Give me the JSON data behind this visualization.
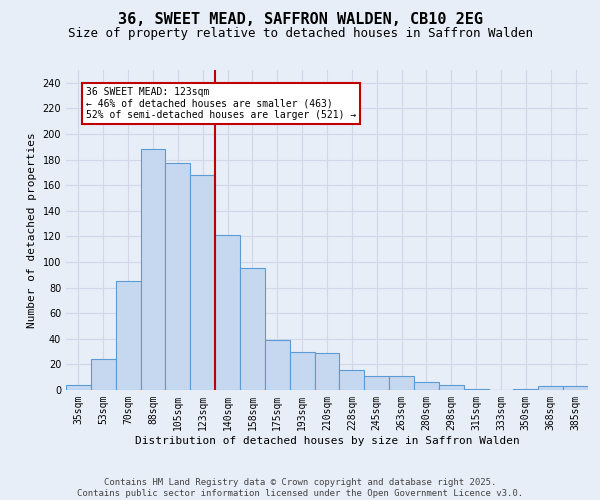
{
  "title_line1": "36, SWEET MEAD, SAFFRON WALDEN, CB10 2EG",
  "title_line2": "Size of property relative to detached houses in Saffron Walden",
  "xlabel": "Distribution of detached houses by size in Saffron Walden",
  "ylabel": "Number of detached properties",
  "categories": [
    "35sqm",
    "53sqm",
    "70sqm",
    "88sqm",
    "105sqm",
    "123sqm",
    "140sqm",
    "158sqm",
    "175sqm",
    "193sqm",
    "210sqm",
    "228sqm",
    "245sqm",
    "263sqm",
    "280sqm",
    "298sqm",
    "315sqm",
    "333sqm",
    "350sqm",
    "368sqm",
    "385sqm"
  ],
  "values": [
    4,
    24,
    85,
    188,
    177,
    168,
    121,
    95,
    39,
    30,
    29,
    16,
    11,
    11,
    6,
    4,
    1,
    0,
    1,
    3,
    3
  ],
  "bar_color": "#c5d8f0",
  "bar_edge_color": "#5b9bd5",
  "grid_color": "#d0d8e8",
  "background_color": "#e8eef8",
  "vline_x": 5.5,
  "vline_color": "#c00000",
  "annotation_text": "36 SWEET MEAD: 123sqm\n← 46% of detached houses are smaller (463)\n52% of semi-detached houses are larger (521) →",
  "annotation_box_color": "white",
  "annotation_box_edge": "#c00000",
  "ylim": [
    0,
    250
  ],
  "yticks": [
    0,
    20,
    40,
    60,
    80,
    100,
    120,
    140,
    160,
    180,
    200,
    220,
    240
  ],
  "footer_line1": "Contains HM Land Registry data © Crown copyright and database right 2025.",
  "footer_line2": "Contains public sector information licensed under the Open Government Licence v3.0.",
  "title_fontsize": 11,
  "subtitle_fontsize": 9,
  "label_fontsize": 8,
  "tick_fontsize": 7,
  "annot_fontsize": 7,
  "footer_fontsize": 6.5
}
